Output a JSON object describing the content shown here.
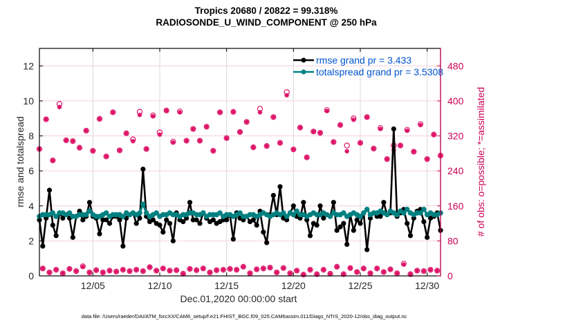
{
  "chart_data": {
    "type": "line",
    "title": "Tropics 20680 / 20822 = 99.318%",
    "subtitle": "RADIOSONDE_U_WIND_COMPONENT @ 250 hPa",
    "xlabel": "Dec.01,2020 00:00:00 start",
    "ylabel": "rmse and totalspread",
    "ylabel_right": "# of obs: o=possible; *=assimilated",
    "x_units": "days since Dec.01,2020 00:00",
    "xlim": [
      0,
      30
    ],
    "ylim": [
      0,
      13
    ],
    "ylim_right": [
      0,
      520
    ],
    "x_ticks": [
      4,
      9,
      14,
      19,
      24,
      29
    ],
    "x_tick_labels": [
      "12/05",
      "12/10",
      "12/15",
      "12/20",
      "12/25",
      "12/30"
    ],
    "y_ticks": [
      0,
      2,
      4,
      6,
      8,
      10,
      12
    ],
    "y_tick_labels": [
      "0",
      "2",
      "4",
      "6",
      "8",
      "10",
      "12"
    ],
    "y_right_ticks": [
      0,
      80,
      160,
      240,
      320,
      400,
      480
    ],
    "y_right_tick_labels": [
      "0",
      "80",
      "160",
      "240",
      "320",
      "400",
      "480"
    ],
    "grid": true,
    "legend_position": "top-right",
    "colors": {
      "rmse": "#000000",
      "totalspread": "#008080",
      "obs": "#dd1166",
      "legend_text": "#0055cc",
      "right_axis": "#cc0055"
    },
    "series": [
      {
        "name": "rmse",
        "legend": "rmse grand pr = 3.433",
        "dt_hours": 6,
        "values": [
          3.2,
          1.7,
          3.3,
          4.9,
          2.9,
          2.3,
          3.6,
          3.3,
          3.5,
          3.3,
          2.2,
          3.4,
          3.7,
          3.2,
          3.4,
          4.2,
          3.4,
          3.3,
          2.4,
          3.2,
          3.2,
          3.0,
          3.4,
          3.4,
          3.2,
          1.7,
          3.3,
          3.5,
          3.6,
          3.0,
          3.3,
          6.1,
          3.4,
          3.1,
          3.2,
          3.0,
          2.9,
          2.5,
          3.2,
          3.0,
          2.0,
          3.6,
          3.2,
          3.1,
          3.3,
          4.2,
          3.2,
          3.2,
          3.0,
          3.6,
          3.3,
          3.1,
          3.2,
          3.0,
          3.1,
          3.2,
          3.2,
          3.5,
          2.1,
          3.6,
          3.3,
          3.2,
          3.4,
          3.1,
          3.2,
          2.9,
          3.7,
          2.5,
          1.9,
          3.5,
          4.6,
          3.5,
          5.1,
          3.3,
          3.2,
          3.6,
          4.0,
          3.4,
          3.3,
          4.2,
          3.2,
          2.3,
          3.0,
          2.9,
          4.0,
          3.3,
          3.5,
          3.4,
          4.2,
          2.6,
          2.8,
          3.0,
          1.8,
          3.5,
          2.6,
          3.2,
          3.0,
          3.6,
          1.5,
          3.3,
          3.6,
          3.4,
          3.4,
          4.2,
          3.5,
          3.6,
          8.4,
          3.4,
          3.6,
          3.8,
          3.0,
          2.3,
          3.3,
          3.7,
          3.8,
          3.1,
          2.2,
          3.3,
          3.4,
          3.6,
          2.6,
          3.6,
          3.5,
          4.1,
          3.3,
          3.4,
          2.7,
          3.2,
          1.9,
          3.2,
          3.2,
          3.5,
          6.7,
          3.9,
          3.4,
          2.5,
          3.6,
          1.8,
          3.3,
          3.4,
          3.5,
          3.2,
          2.3,
          3.1,
          2.6,
          3.8,
          4.4,
          3.3,
          3.5,
          3.6,
          3.4,
          3.1,
          3.3,
          3.2,
          2.2,
          3.2,
          2.3,
          3.3,
          3.5,
          3.3,
          3.6,
          4.0,
          3.5,
          3.4,
          2.7,
          3.2,
          4.2,
          3.5,
          3.8,
          3.4,
          4.0,
          3.5,
          3.2,
          3.4,
          3.6,
          2.7,
          3.8,
          4.2,
          3.6,
          3.1,
          3.5,
          3.6,
          3.1,
          2.6,
          3.7,
          4.0,
          3.3,
          3.6,
          2.0,
          3.3,
          4.9,
          3.5,
          2.0,
          3.8,
          4.0,
          3.5,
          3.6,
          3.8,
          2.7,
          3.3,
          3.6,
          3.4,
          4.4,
          4.1,
          3.9
        ],
        "note": "approximate, 6-hourly from Dec 1 00Z"
      },
      {
        "name": "totalspread",
        "legend": "totalspread grand pr = 3.5308",
        "dt_hours": 6,
        "values": [
          3.4,
          3.5,
          3.5,
          3.5,
          3.6,
          3.4,
          3.6,
          3.6,
          3.5,
          3.6,
          3.4,
          3.4,
          3.5,
          3.5,
          3.5,
          3.7,
          3.5,
          3.4,
          3.4,
          3.5,
          3.6,
          3.4,
          3.5,
          3.5,
          3.5,
          3.4,
          3.6,
          3.5,
          3.6,
          3.5,
          3.6,
          4.1,
          3.6,
          3.4,
          3.5,
          3.6,
          3.4,
          3.5,
          3.5,
          3.6,
          3.5,
          3.5,
          3.4,
          3.5,
          3.5,
          3.6,
          3.6,
          3.5,
          3.5,
          3.6,
          3.4,
          3.5,
          3.5,
          3.5,
          3.6,
          3.4,
          3.5,
          3.5,
          3.4,
          3.5,
          3.6,
          3.4,
          3.4,
          3.5,
          3.5,
          3.4,
          3.5,
          3.6,
          3.5,
          3.4,
          3.5,
          3.6,
          3.5,
          3.6,
          3.4,
          3.6,
          3.5,
          3.7,
          3.5,
          3.5,
          3.4,
          3.5,
          3.6,
          3.5,
          3.5,
          3.6,
          3.5,
          3.4,
          3.6,
          3.5,
          3.5,
          3.6,
          3.4,
          3.5,
          3.6,
          3.5,
          3.4,
          3.6,
          3.8,
          3.5,
          3.6,
          3.6,
          3.7,
          3.6,
          3.5,
          3.7,
          3.6,
          3.5,
          3.7,
          3.6,
          3.8,
          3.6,
          3.5,
          3.6,
          3.6,
          3.8,
          3.5,
          3.6,
          3.5,
          3.5,
          3.6,
          3.4,
          3.6,
          3.5,
          3.6,
          3.4,
          3.5,
          3.6,
          3.4,
          3.5,
          3.6,
          3.7,
          3.5,
          3.4,
          3.6,
          3.5,
          3.5,
          3.6,
          3.4,
          3.5,
          3.6,
          3.4,
          3.5,
          3.6,
          3.5,
          3.6,
          3.4,
          3.5,
          3.6,
          3.6,
          3.5,
          3.4,
          3.6,
          3.5,
          3.6,
          3.6,
          3.7,
          3.5,
          3.8,
          3.6,
          3.5,
          3.6,
          3.6,
          3.5,
          3.9,
          3.5,
          3.6,
          3.6,
          3.5,
          3.7,
          3.9,
          3.5,
          3.6,
          3.6,
          3.7,
          3.6,
          3.7,
          3.7,
          3.9,
          3.7,
          3.6,
          3.5,
          3.7,
          3.6,
          3.7,
          3.8,
          3.6,
          3.7,
          3.8,
          3.9,
          3.7,
          3.6
        ],
        "note": "approximate, 6-hourly from Dec 1 00Z"
      }
    ],
    "obs_counts": {
      "description": "right axis; alternating high (00Z/12Z) and low (06Z/18Z) counts",
      "high": {
        "start_day": 0.0,
        "dt_hours": 12,
        "assimilated": [
          290,
          358,
          264,
          386,
          310,
          308,
          293,
          332,
          286,
          359,
          273,
          374,
          287,
          326,
          308,
          368,
          290,
          365,
          323,
          378,
          305,
          374,
          309,
          336,
          309,
          341,
          286,
          374,
          315,
          375,
          329,
          352,
          294,
          374,
          297,
          363,
          304,
          413,
          289,
          339,
          271,
          330,
          327,
          377,
          306,
          345,
          285,
          357,
          304,
          363,
          291,
          336,
          267,
          288,
          298,
          332,
          284,
          345,
          267,
          323,
          275
        ],
        "possible": [
          290,
          358,
          264,
          393,
          310,
          308,
          293,
          332,
          286,
          359,
          273,
          374,
          287,
          326,
          312,
          375,
          290,
          367,
          328,
          378,
          307,
          376,
          309,
          336,
          309,
          341,
          286,
          374,
          315,
          375,
          329,
          352,
          294,
          382,
          297,
          363,
          304,
          420,
          289,
          339,
          271,
          330,
          327,
          379,
          306,
          345,
          298,
          360,
          304,
          363,
          291,
          338,
          267,
          298,
          298,
          334,
          284,
          347,
          267,
          323,
          275
        ]
      },
      "low": {
        "start_day": 0.25,
        "dt_hours": 12,
        "assimilated": [
          17,
          8,
          14,
          6,
          16,
          11,
          21,
          8,
          13,
          8,
          12,
          10,
          14,
          11,
          14,
          11,
          20,
          12,
          17,
          12,
          13,
          5,
          16,
          13,
          17,
          8,
          13,
          14,
          16,
          14,
          21,
          6,
          15,
          17,
          19,
          8,
          18,
          6,
          12,
          3,
          14,
          4,
          14,
          5,
          21,
          4,
          18,
          9,
          17,
          6,
          17,
          9,
          15,
          6,
          26,
          4,
          12,
          11,
          14,
          12
        ],
        "possible": [
          17,
          8,
          14,
          6,
          16,
          11,
          22,
          8,
          13,
          8,
          12,
          10,
          14,
          11,
          14,
          11,
          20,
          12,
          17,
          12,
          13,
          5,
          16,
          13,
          17,
          8,
          13,
          14,
          16,
          14,
          21,
          6,
          15,
          17,
          19,
          8,
          18,
          6,
          12,
          3,
          14,
          4,
          14,
          5,
          21,
          4,
          18,
          9,
          17,
          6,
          17,
          9,
          15,
          6,
          28,
          4,
          12,
          11,
          14,
          12
        ]
      }
    },
    "footer": "data file: /Users/raeder/DAI/ATM_forcXX/CAM6_setup/f.e21.FHIST_BGC.f09_025.CAM6assim.011/Diags_NTrS_2020-12/obs_diag_output.nc"
  }
}
